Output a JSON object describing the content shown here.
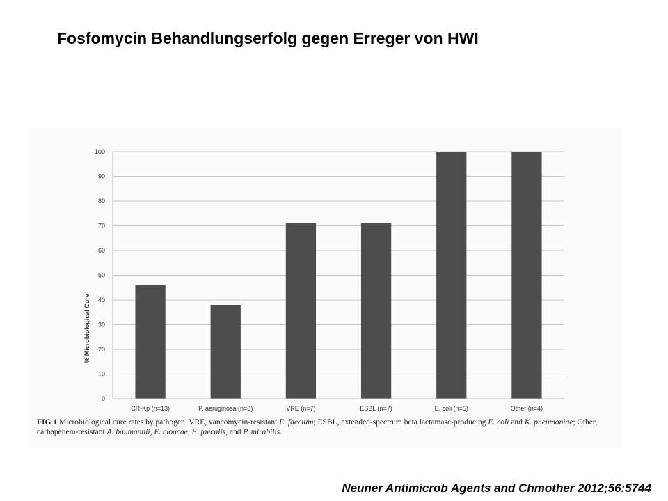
{
  "slide": {
    "title": "Fosfomycin Behandlungserfolg gegen Erreger von HWI",
    "citation": "Neuner Antimicrob Agents and Chmother 2012;56:5744"
  },
  "figure": {
    "caption_label": "FIG 1",
    "caption_parts": [
      {
        "text": " Microbiological cure rates by pathogen. VRE, vancomycin-resistant ",
        "italic": false
      },
      {
        "text": "E. faecium",
        "italic": true
      },
      {
        "text": "; ESBL, extended-spectrum beta lactamase-producing ",
        "italic": false
      },
      {
        "text": "E. coli",
        "italic": true
      },
      {
        "text": " and ",
        "italic": false
      },
      {
        "text": "K. pneumoniae",
        "italic": true
      },
      {
        "text": "; Other, carbapenem-resistant ",
        "italic": false
      },
      {
        "text": "A. baumannii",
        "italic": true
      },
      {
        "text": ", ",
        "italic": false
      },
      {
        "text": "E. cloacae",
        "italic": true
      },
      {
        "text": ", ",
        "italic": false
      },
      {
        "text": "E. faecalis",
        "italic": true
      },
      {
        "text": ", and ",
        "italic": false
      },
      {
        "text": "P. mirabilis",
        "italic": true
      },
      {
        "text": ".",
        "italic": false
      }
    ]
  },
  "chart_data": {
    "type": "bar",
    "categories": [
      "CR-Kp (n=13)",
      "P. aeruginosa (n=8)",
      "VRE (n=7)",
      "ESBL (n=7)",
      "E. coli (n=5)",
      "Other (n=4)"
    ],
    "values": [
      46,
      38,
      71,
      71,
      100,
      100
    ],
    "title": "",
    "xlabel": "",
    "ylabel": "% Microbiological Cure",
    "ylim": [
      0,
      100
    ],
    "yticks": [
      0,
      10,
      20,
      30,
      40,
      50,
      60,
      70,
      80,
      90,
      100
    ],
    "grid": true,
    "bar_color": "#4d4d4d",
    "grid_color": "#c8c8c8"
  }
}
